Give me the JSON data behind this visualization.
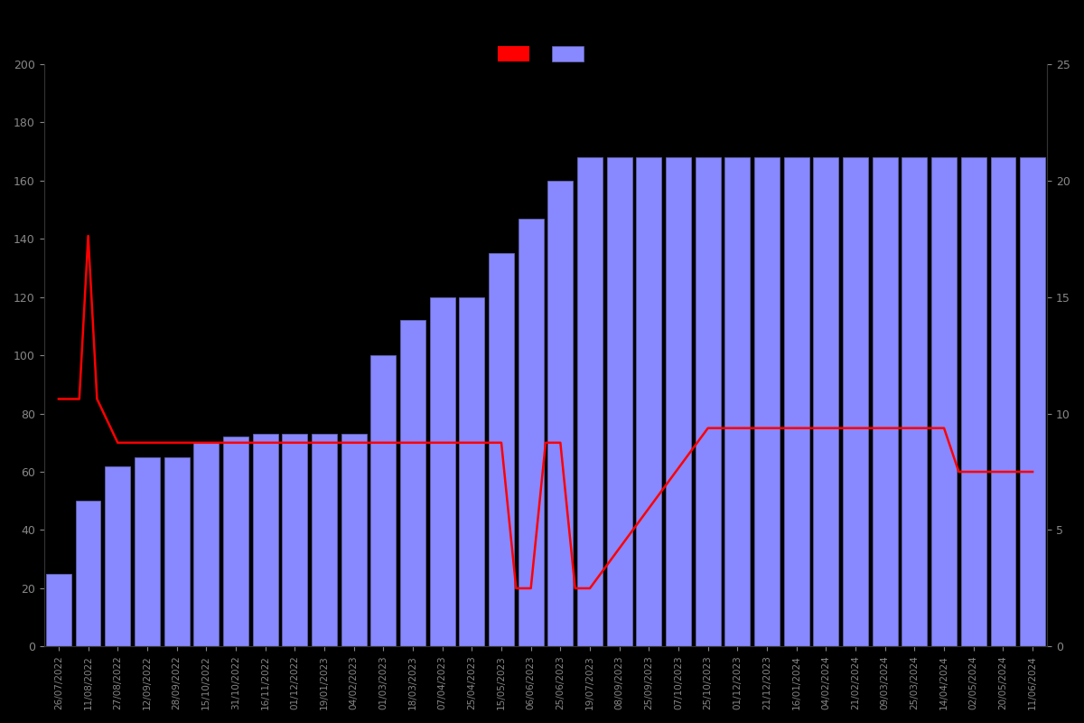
{
  "background_color": "#000000",
  "bar_color": "#8888ff",
  "bar_edge_color": "#6666bb",
  "line_color": "#ff0000",
  "tick_color": "#888888",
  "left_ylim": [
    0,
    200
  ],
  "right_ylim": [
    0,
    25
  ],
  "left_yticks": [
    0,
    20,
    40,
    60,
    80,
    100,
    120,
    140,
    160,
    180,
    200
  ],
  "right_yticks": [
    0,
    5,
    10,
    15,
    20,
    25
  ],
  "categories": [
    "26/07/2022",
    "11/08/2022",
    "27/08/2022",
    "12/09/2022",
    "28/09/2022",
    "15/10/2022",
    "31/10/2022",
    "16/11/2022",
    "01/12/2022",
    "19/01/2023",
    "04/02/2023",
    "01/03/2023",
    "18/03/2023",
    "07/04/2023",
    "25/04/2023",
    "15/05/2023",
    "06/06/2023",
    "25/06/2023",
    "19/07/2023",
    "08/09/2023",
    "25/09/2023",
    "07/10/2023",
    "25/10/2023",
    "01/12/2023",
    "21/12/2023",
    "16/01/2024",
    "04/02/2024",
    "21/02/2024",
    "09/03/2024",
    "25/03/2024",
    "14/04/2024",
    "02/05/2024",
    "20/05/2024",
    "11/06/2024"
  ],
  "bar_values": [
    25,
    50,
    62,
    65,
    65,
    70,
    72,
    73,
    73,
    73,
    73,
    100,
    112,
    120,
    120,
    135,
    147,
    160,
    168,
    168,
    168,
    168,
    168,
    168,
    168,
    168,
    168,
    168,
    168,
    168,
    168,
    168,
    168,
    168
  ],
  "line_x": [
    0,
    0.7,
    1,
    1.3,
    2,
    3,
    4,
    5,
    6,
    7,
    8,
    9,
    10,
    11,
    12,
    13,
    14,
    15,
    15.5,
    16,
    16.5,
    17,
    17.5,
    18,
    22,
    23,
    24,
    25,
    26,
    27,
    28,
    29,
    30,
    30.5,
    31,
    32,
    33
  ],
  "line_y": [
    85,
    85,
    141,
    85,
    70,
    70,
    70,
    70,
    70,
    70,
    70,
    70,
    70,
    70,
    70,
    70,
    70,
    70,
    20,
    20,
    70,
    70,
    20,
    20,
    75,
    75,
    75,
    75,
    75,
    75,
    75,
    75,
    75,
    60,
    60,
    60,
    60
  ]
}
